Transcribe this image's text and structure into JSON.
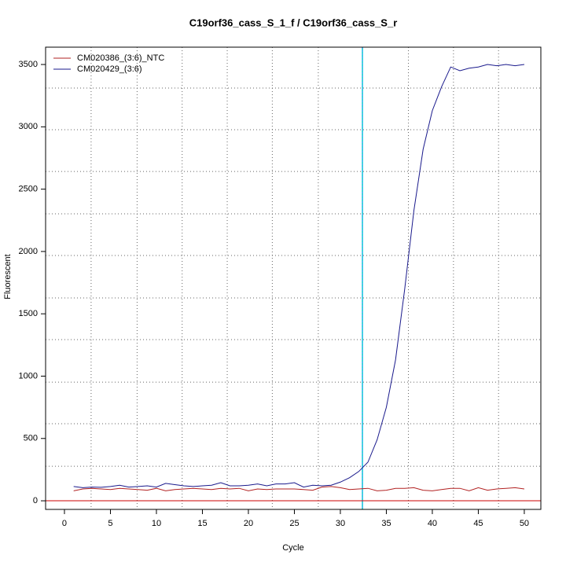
{
  "chart_data": {
    "type": "line",
    "title": "C19orf36_cass_S_1_f / C19orf36_cass_S_r",
    "xlabel": "Cycle",
    "ylabel": "Fluorescent",
    "x": [
      1,
      2,
      3,
      4,
      5,
      6,
      7,
      8,
      9,
      10,
      11,
      12,
      13,
      14,
      15,
      16,
      17,
      18,
      19,
      20,
      21,
      22,
      23,
      24,
      25,
      26,
      27,
      28,
      29,
      30,
      31,
      32,
      33,
      34,
      35,
      36,
      37,
      38,
      39,
      40,
      41,
      42,
      43,
      44,
      45,
      46,
      47,
      48,
      49,
      50
    ],
    "series": [
      {
        "name": "CM020386_(3:6)_NTC",
        "color": "#b22222",
        "values": [
          80,
          95,
          100,
          95,
          90,
          100,
          95,
          90,
          85,
          100,
          80,
          90,
          95,
          100,
          95,
          90,
          100,
          95,
          100,
          80,
          95,
          90,
          95,
          95,
          95,
          90,
          85,
          110,
          115,
          105,
          90,
          95,
          100,
          80,
          85,
          100,
          100,
          105,
          85,
          80,
          90,
          100,
          100,
          80,
          105,
          85,
          95,
          100,
          105,
          95
        ]
      },
      {
        "name": "CM020429_(3:6)",
        "color": "#1a1a8c",
        "values": [
          115,
          105,
          110,
          108,
          115,
          125,
          110,
          115,
          120,
          110,
          140,
          130,
          120,
          115,
          120,
          125,
          145,
          120,
          120,
          125,
          135,
          120,
          135,
          135,
          145,
          110,
          125,
          120,
          125,
          150,
          185,
          235,
          310,
          490,
          750,
          1130,
          1700,
          2330,
          2820,
          3130,
          3320,
          3480,
          3450,
          3470,
          3480,
          3500,
          3490,
          3500,
          3490,
          3500
        ]
      }
    ],
    "xlim": [
      -2.05,
      51.8
    ],
    "ylim": [
      -69,
      3639
    ],
    "xticks": [
      0,
      5,
      10,
      15,
      20,
      25,
      30,
      35,
      40,
      45,
      50
    ],
    "yticks": [
      0,
      500,
      1000,
      1500,
      2000,
      2500,
      3000,
      3500
    ],
    "xgrid": [
      2.9,
      7.9,
      12.8,
      17.7,
      22.6,
      27.6,
      37.4,
      42.3,
      47.2
    ],
    "ygrid": [
      277,
      618,
      952,
      1293,
      1627,
      1968,
      2302,
      2642,
      2977,
      3311
    ],
    "threshold_x": 32.4,
    "threshold_color": "#00cccc",
    "baseline_y": 0,
    "baseline_color": "#cc0000",
    "legend": "top-left"
  }
}
